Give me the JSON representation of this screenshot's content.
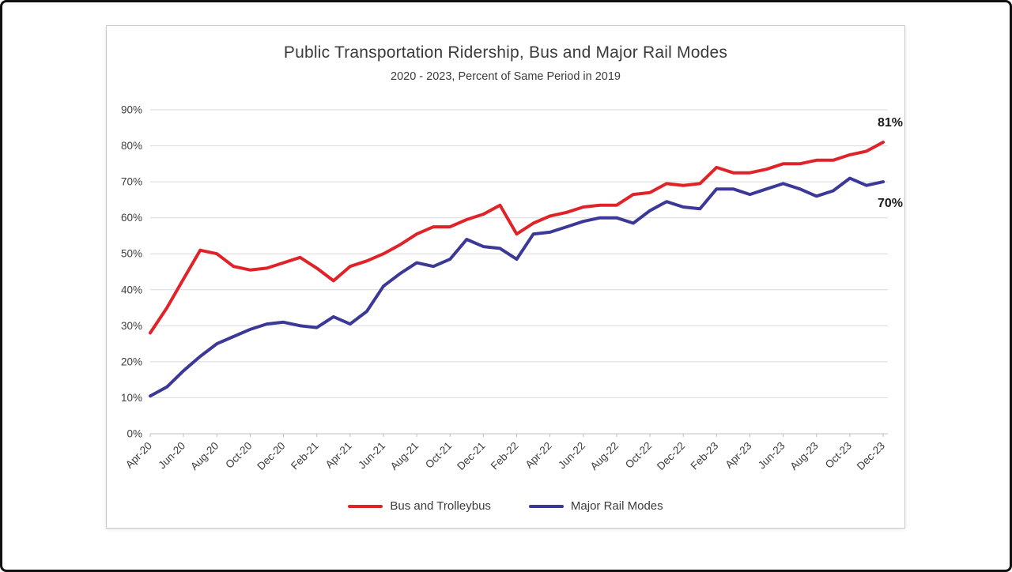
{
  "chart_data": {
    "type": "line",
    "title": "Public Transportation Ridership, Bus and Major Rail Modes",
    "subtitle": "2020 - 2023, Percent of Same Period in 2019",
    "x": [
      "Apr-20",
      "May-20",
      "Jun-20",
      "Jul-20",
      "Aug-20",
      "Sep-20",
      "Oct-20",
      "Nov-20",
      "Dec-20",
      "Jan-21",
      "Feb-21",
      "Mar-21",
      "Apr-21",
      "May-21",
      "Jun-21",
      "Jul-21",
      "Aug-21",
      "Sep-21",
      "Oct-21",
      "Nov-21",
      "Dec-21",
      "Jan-22",
      "Feb-22",
      "Mar-22",
      "Apr-22",
      "May-22",
      "Jun-22",
      "Jul-22",
      "Aug-22",
      "Sep-22",
      "Oct-22",
      "Nov-22",
      "Dec-22",
      "Jan-23",
      "Feb-23",
      "Mar-23",
      "Apr-23",
      "May-23",
      "Jun-23",
      "Jul-23",
      "Aug-23",
      "Sep-23",
      "Oct-23",
      "Nov-23",
      "Dec-23"
    ],
    "x_tick_step": 2,
    "ylim": [
      0,
      90
    ],
    "ytick_step": 10,
    "ytick_suffix": "%",
    "grid": "horizontal",
    "legend_position": "bottom",
    "series": [
      {
        "name": "Bus and Trolleybus",
        "color": "#e02329",
        "values": [
          28,
          35,
          43,
          51,
          50,
          46.5,
          45.5,
          46,
          47.5,
          49,
          46,
          42.5,
          46.5,
          48,
          50,
          52.5,
          55.5,
          57.5,
          57.5,
          59.5,
          61,
          63.5,
          55.5,
          58.5,
          60.5,
          61.5,
          63,
          63.5,
          63.5,
          66.5,
          67,
          69.5,
          69,
          69.5,
          74,
          72.5,
          72.5,
          73.5,
          75,
          75,
          76,
          76,
          77.5,
          78.5,
          81
        ]
      },
      {
        "name": "Major Rail Modes",
        "color": "#3b3897",
        "values": [
          10.5,
          13,
          17.5,
          21.5,
          25,
          27,
          29,
          30.5,
          31,
          30,
          29.5,
          32.5,
          30.5,
          34,
          41,
          44.5,
          47.5,
          46.5,
          48.5,
          54,
          52,
          51.5,
          48.5,
          55.5,
          56,
          57.5,
          59,
          60,
          60,
          58.5,
          62,
          64.5,
          63,
          62.5,
          68,
          68,
          66.5,
          68,
          69.5,
          68,
          66,
          67.5,
          71,
          69,
          70
        ]
      }
    ],
    "annotations": [
      {
        "label": "81%",
        "series": "Bus and Trolleybus",
        "x": "Dec-23",
        "y": 81,
        "position": "above"
      },
      {
        "label": "70%",
        "series": "Major Rail Modes",
        "x": "Dec-23",
        "y": 70,
        "position": "below"
      }
    ],
    "colors": {
      "grid": "#d9d9d9",
      "axis": "#bfbfbf",
      "text": "#3d3d3d",
      "annotation": "#1a1a1a"
    }
  }
}
